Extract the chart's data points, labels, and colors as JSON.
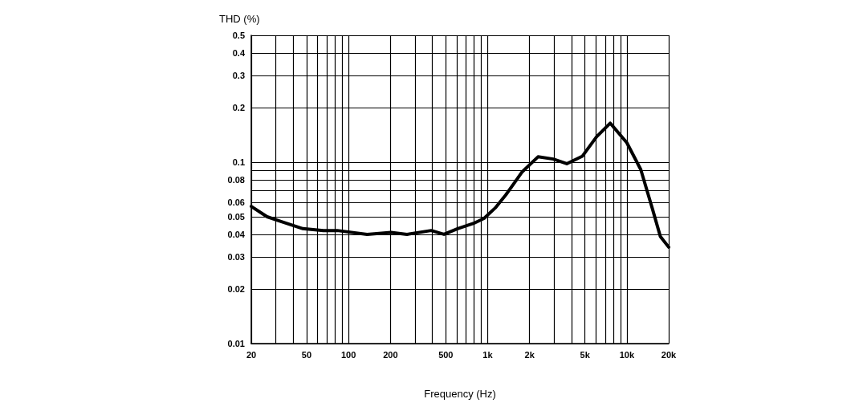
{
  "chart_data": {
    "type": "line",
    "xlabel": "Frequency (Hz)",
    "ylabel": "THD (%)",
    "log": "xy",
    "grid": true,
    "marker": "none",
    "line_style": "solid",
    "xlim": [
      20,
      20000
    ],
    "ylim": [
      0.01,
      0.5
    ],
    "xticks": [
      20,
      {
        "value": 30,
        "label": null
      },
      {
        "value": 40,
        "label": null
      },
      50,
      {
        "value": 60,
        "label": null
      },
      {
        "value": 70,
        "label": null
      },
      {
        "value": 80,
        "label": null
      },
      {
        "value": 90,
        "label": null
      },
      100,
      200,
      {
        "value": 300,
        "label": null
      },
      {
        "value": 400,
        "label": null
      },
      500,
      {
        "value": 600,
        "label": null
      },
      {
        "value": 700,
        "label": null
      },
      {
        "value": 800,
        "label": null
      },
      {
        "value": 900,
        "label": null
      },
      {
        "value": 1000,
        "label": "1k"
      },
      {
        "value": 2000,
        "label": "2k"
      },
      {
        "value": 3000,
        "label": null
      },
      {
        "value": 4000,
        "label": null
      },
      {
        "value": 5000,
        "label": "5k"
      },
      {
        "value": 6000,
        "label": null
      },
      {
        "value": 7000,
        "label": null
      },
      {
        "value": 8000,
        "label": null
      },
      {
        "value": 9000,
        "label": null
      },
      {
        "value": 10000,
        "label": "10k"
      },
      {
        "value": 20000,
        "label": "20k"
      }
    ],
    "yticks": [
      0.01,
      0.02,
      0.03,
      0.04,
      0.05,
      0.06,
      {
        "value": 0.07,
        "label": null
      },
      0.08,
      {
        "value": 0.09,
        "label": null
      },
      0.1,
      0.2,
      0.3,
      0.4,
      0.5
    ],
    "series": [
      {
        "color": "#000000",
        "x": [
          20,
          26,
          33,
          47,
          66,
          83,
          136,
          202,
          263,
          393,
          485,
          608,
          793,
          942,
          1135,
          1350,
          1540,
          1760,
          2300,
          2960,
          3700,
          4800,
          6060,
          7600,
          10000,
          12600,
          15200,
          17400,
          20000
        ],
        "values": [
          0.057,
          0.05,
          0.047,
          0.043,
          0.042,
          0.042,
          0.04,
          0.041,
          0.04,
          0.042,
          0.04,
          0.043,
          0.046,
          0.049,
          0.056,
          0.066,
          0.076,
          0.088,
          0.107,
          0.104,
          0.098,
          0.108,
          0.138,
          0.164,
          0.128,
          0.091,
          0.056,
          0.039,
          0.034
        ]
      }
    ]
  }
}
